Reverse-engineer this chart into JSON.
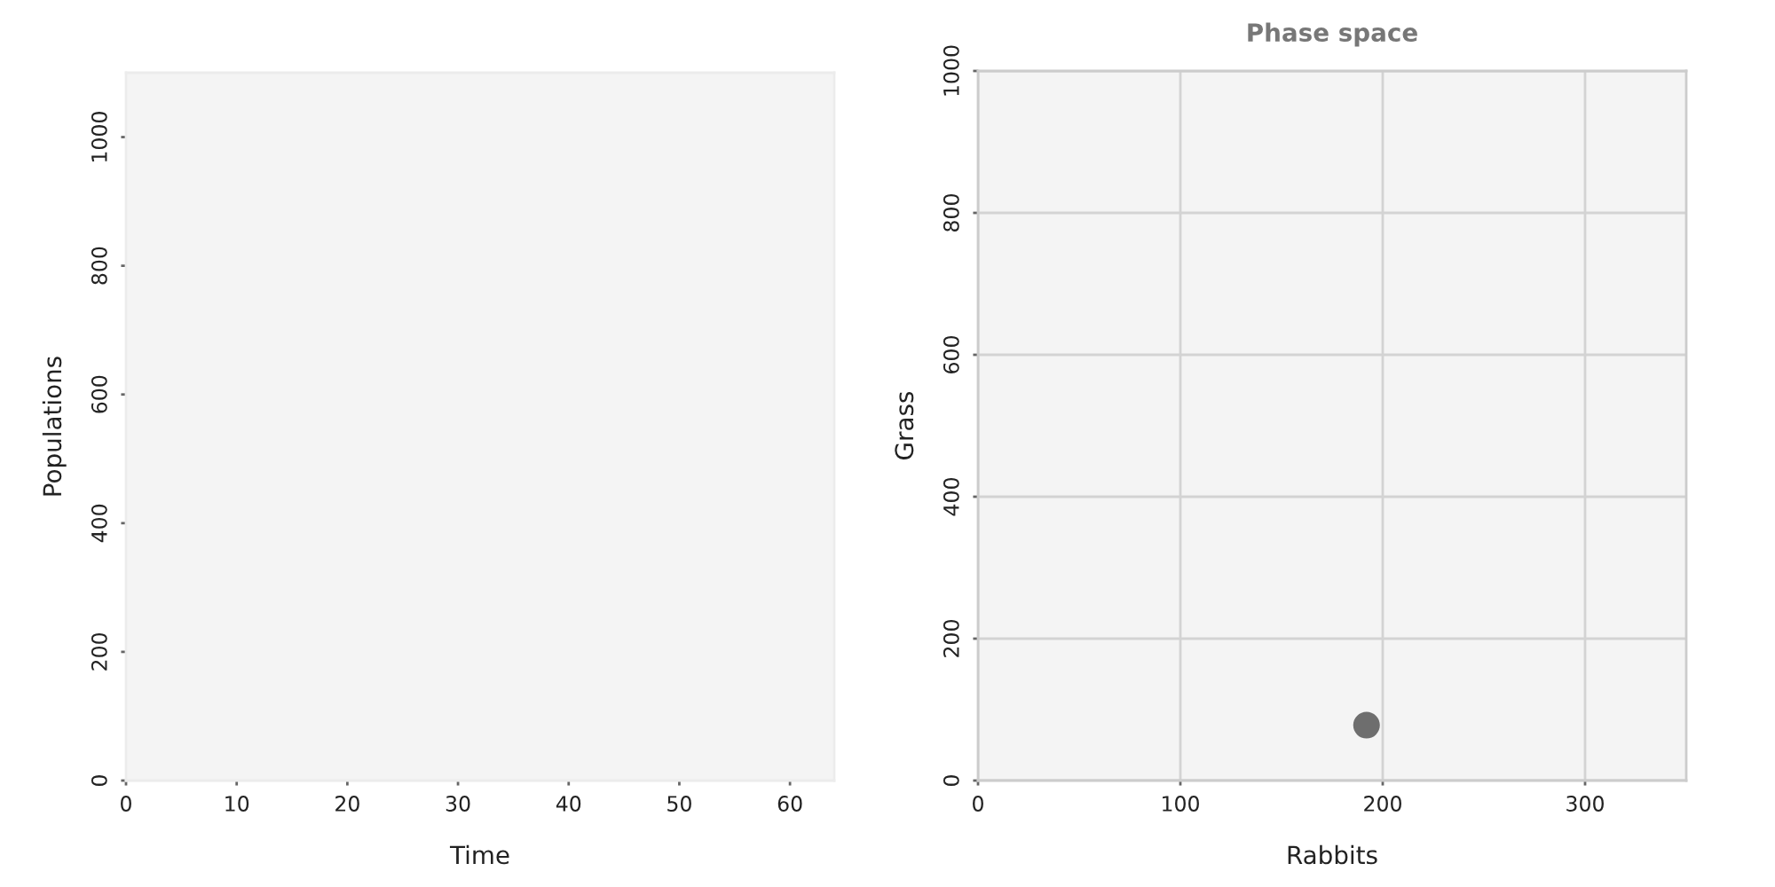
{
  "chart_data": [
    {
      "type": "line",
      "xlabel": "Time",
      "ylabel": "Populations",
      "xlim": [
        0,
        64
      ],
      "ylim": [
        0,
        1100
      ],
      "xticks": [
        0,
        10,
        20,
        30,
        40,
        50,
        60
      ],
      "yticks": [
        0,
        200,
        400,
        600,
        800,
        1000
      ],
      "grid": false
    },
    {
      "type": "scatter",
      "title": "Phase space",
      "xlabel": "Rabbits",
      "ylabel": "Grass",
      "xlim": [
        0,
        350
      ],
      "ylim": [
        0,
        1000
      ],
      "xticks": [
        0,
        100,
        200,
        300
      ],
      "yticks": [
        0,
        200,
        400,
        600,
        800,
        1000
      ],
      "grid": true,
      "marker": "circle",
      "series": [
        {
          "color": "#6e6e6e",
          "x": [
            192
          ],
          "values": [
            78
          ]
        }
      ]
    }
  ]
}
